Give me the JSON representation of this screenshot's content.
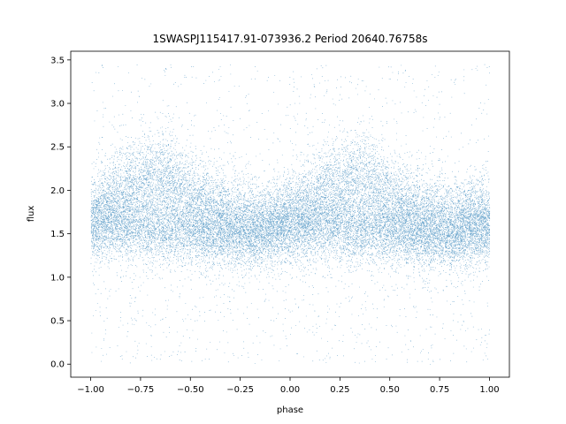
{
  "chart_data": {
    "type": "scatter",
    "title": "1SWASPJ115417.91-073936.2 Period 20640.76758s",
    "xlabel": "phase",
    "ylabel": "flux",
    "xlim": [
      -1.1,
      1.1
    ],
    "ylim": [
      -0.15,
      3.6
    ],
    "xticks": [
      -1.0,
      -0.75,
      -0.5,
      -0.25,
      0.0,
      0.25,
      0.5,
      0.75,
      1.0
    ],
    "xtick_labels": [
      "−1.00",
      "−0.75",
      "−0.50",
      "−0.25",
      "0.00",
      "0.25",
      "0.50",
      "0.75",
      "1.00"
    ],
    "yticks": [
      0.0,
      0.5,
      1.0,
      1.5,
      2.0,
      2.5,
      3.0,
      3.5
    ],
    "ytick_labels": [
      "0.0",
      "0.5",
      "1.0",
      "1.5",
      "2.0",
      "2.5",
      "3.0",
      "3.5"
    ],
    "grid": false,
    "marker_color": "#1f77b4",
    "series": [
      {
        "phase_range": [
          -1.0,
          1.0
        ],
        "envelope": {
          "phase": [
            -1.0,
            -0.9,
            -0.8,
            -0.7,
            -0.65,
            -0.6,
            -0.5,
            -0.4,
            -0.3,
            -0.2,
            -0.1,
            0.0,
            0.1,
            0.2,
            0.3,
            0.35,
            0.4,
            0.5,
            0.6,
            0.7,
            0.8,
            0.9,
            1.0
          ],
          "flux_baseline": [
            1.6,
            1.6,
            1.6,
            1.55,
            1.55,
            1.55,
            1.55,
            1.5,
            1.5,
            1.5,
            1.55,
            1.6,
            1.6,
            1.6,
            1.55,
            1.55,
            1.55,
            1.55,
            1.5,
            1.5,
            1.5,
            1.55,
            1.6
          ],
          "flux_upper_branch": [
            1.7,
            1.9,
            2.05,
            2.15,
            2.15,
            2.1,
            1.95,
            1.8,
            1.7,
            1.65,
            1.65,
            1.7,
            1.85,
            2.05,
            2.15,
            2.15,
            2.1,
            1.95,
            1.8,
            1.7,
            1.65,
            1.65,
            1.7
          ]
        },
        "flux_scatter_range": [
          0.0,
          3.45
        ]
      }
    ]
  }
}
